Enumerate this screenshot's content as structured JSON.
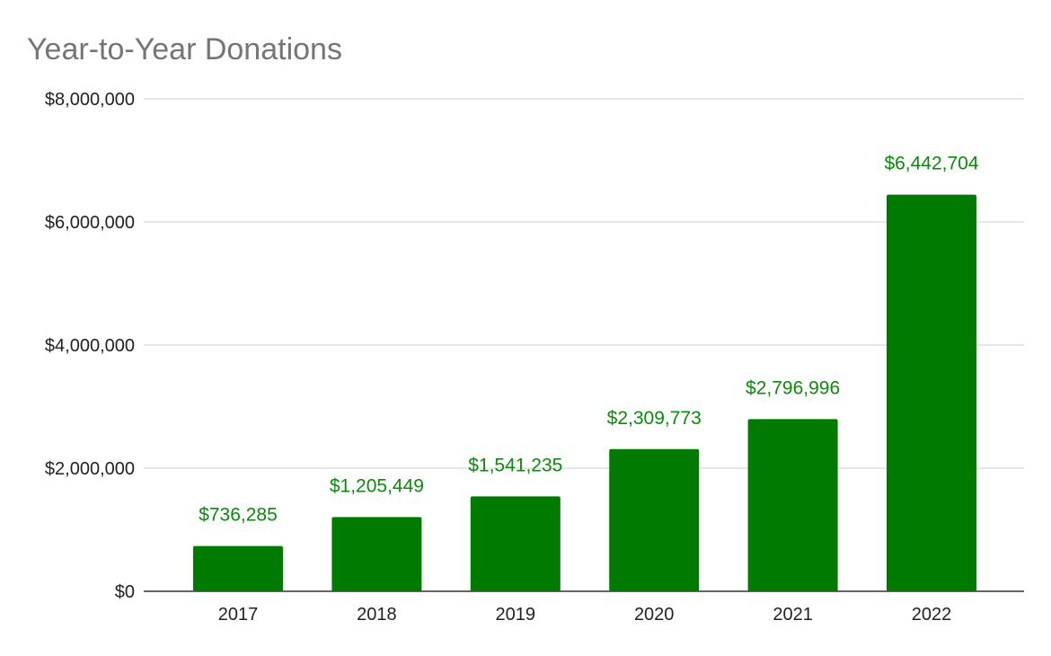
{
  "chart_data": {
    "type": "bar",
    "title": "Year-to-Year Donations",
    "xlabel": "",
    "ylabel": "",
    "categories": [
      "2017",
      "2018",
      "2019",
      "2020",
      "2021",
      "2022"
    ],
    "values": [
      736285,
      1205449,
      1541235,
      2309773,
      2796996,
      6442704
    ],
    "data_labels": [
      "$736,285",
      "$1,205,449",
      "$1,541,235",
      "$2,309,773",
      "$2,796,996",
      "$6,442,704"
    ],
    "ylim": [
      0,
      8000000
    ],
    "yticks": [
      0,
      2000000,
      4000000,
      6000000,
      8000000
    ],
    "ytick_labels": [
      "$0",
      "$2,000,000",
      "$4,000,000",
      "$6,000,000",
      "$8,000,000"
    ],
    "grid": true,
    "legend": "none",
    "colors": {
      "bar": "#007a00",
      "data_label": "#0b8a0b",
      "title": "#757575"
    }
  }
}
